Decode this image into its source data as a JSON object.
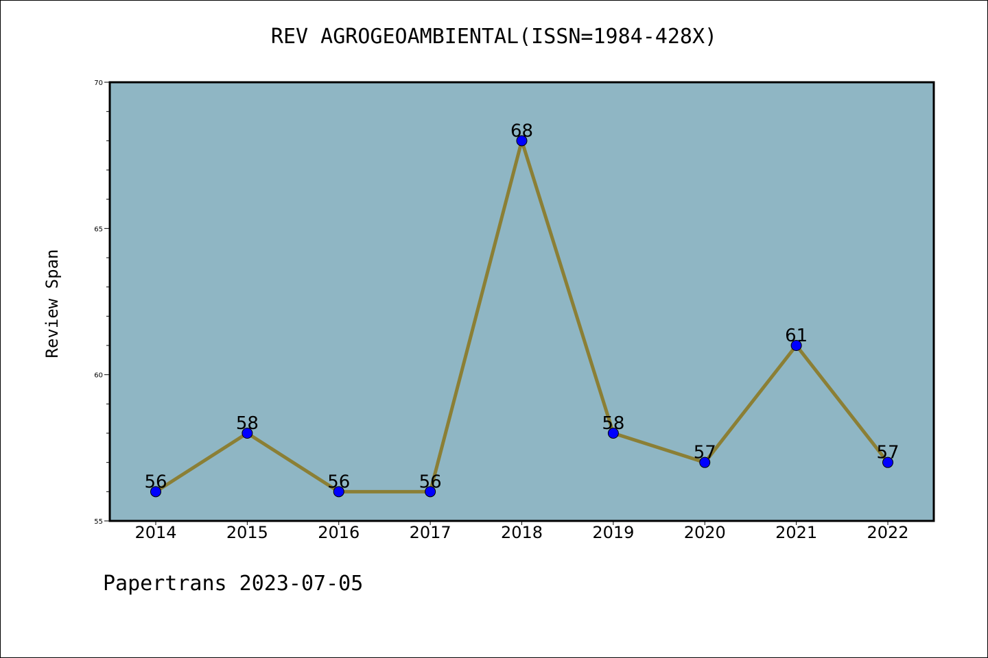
{
  "chart_data": {
    "type": "line",
    "title": "REV AGROGEOAMBIENTAL(ISSN=1984-428X)",
    "ylabel": "Review Span",
    "xlabel": "",
    "categories": [
      "2014",
      "2015",
      "2016",
      "2017",
      "2018",
      "2019",
      "2020",
      "2021",
      "2022"
    ],
    "values": [
      56,
      58,
      56,
      56,
      68,
      58,
      57,
      61,
      57
    ],
    "data_labels": [
      "56",
      "58",
      "56",
      "56",
      "68",
      "58",
      "57",
      "61",
      "57"
    ],
    "ylim": [
      55,
      70
    ],
    "yticks": [
      "55",
      "60",
      "65",
      "70"
    ],
    "grid": false,
    "legend": "none",
    "colors": {
      "plot_bg": "#8fb6c4",
      "line": "#8b7f35",
      "marker": "#0000ff"
    }
  },
  "footer": {
    "text": "Papertrans 2023-07-05"
  }
}
